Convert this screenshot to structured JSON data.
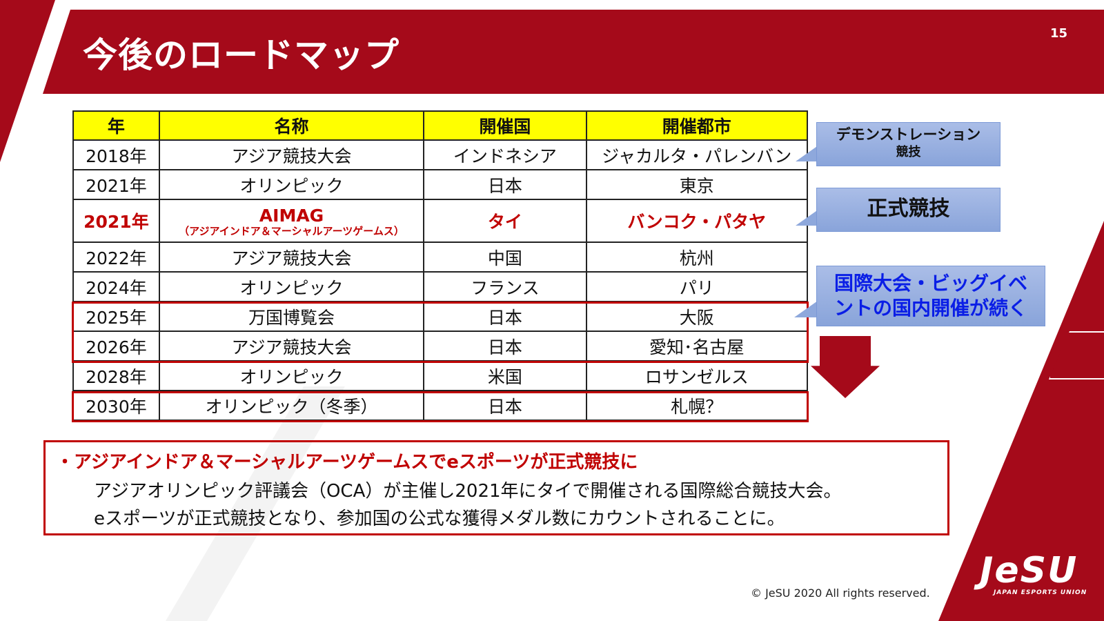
{
  "slide": {
    "title": "今後のロードマップ",
    "page_number": "15",
    "colors": {
      "brand_red": "#a50a1a",
      "header_yellow": "#ffff00",
      "highlight_red": "#c00000",
      "callout_blue": "#9cb3e2",
      "emphasis_blue": "#0a1ee6"
    }
  },
  "table": {
    "headers": [
      "年",
      "名称",
      "開催国",
      "開催都市"
    ],
    "rows": [
      {
        "year": "2018年",
        "name": "アジア競技大会",
        "country": "インドネシア",
        "city": "ジャカルタ・パレンバン"
      },
      {
        "year": "2021年",
        "name": "オリンピック",
        "country": "日本",
        "city": "東京"
      },
      {
        "year": "2021年",
        "name": "AIMAG",
        "name_sub": "（アジアインドア＆マーシャルアーツゲームス）",
        "country": "タイ",
        "city": "バンコク・パタヤ"
      },
      {
        "year": "2022年",
        "name": "アジア競技大会",
        "country": "中国",
        "city": "杭州"
      },
      {
        "year": "2024年",
        "name": "オリンピック",
        "country": "フランス",
        "city": "パリ"
      },
      {
        "year": "2025年",
        "name": "万国博覧会",
        "country": "日本",
        "city": "大阪"
      },
      {
        "year": "2026年",
        "name": "アジア競技大会",
        "country": "日本",
        "city": "愛知･名古屋"
      },
      {
        "year": "2028年",
        "name": "オリンピック",
        "country": "米国",
        "city": "ロサンゼルス"
      },
      {
        "year": "2030年",
        "name": "オリンピック（冬季）",
        "country": "日本",
        "city": "札幌？"
      }
    ]
  },
  "callouts": {
    "demo_line1": "デモンストレーション",
    "demo_line2": "競技",
    "official": "正式競技",
    "domestic_line1": "国際大会・ビッグイベ",
    "domestic_line2": "ントの国内開催が続く"
  },
  "note": {
    "heading": "・アジアインドア＆マーシャルアーツゲームスでeスポーツが正式競技に",
    "line1": "アジアオリンピック評議会（OCA）が主催し2021年にタイで開催される国際総合競技大会。",
    "line2": "eスポーツが正式競技となり、参加国の公式な獲得メダル数にカウントされることに。"
  },
  "footer": {
    "copyright": "© JeSU 2020 All rights reserved.",
    "logo_text": "JeSU",
    "logo_sub": "JAPAN ESPORTS UNION"
  }
}
